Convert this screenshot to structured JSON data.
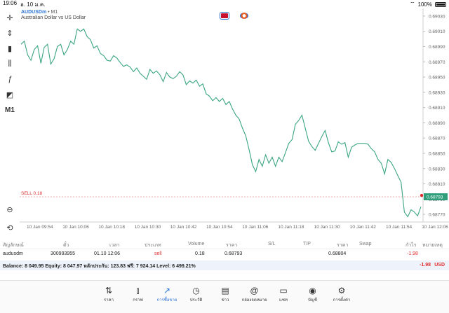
{
  "status_bar": {
    "time": "19:06",
    "date": "อ. 10 ม.ค.",
    "battery": "100%"
  },
  "symbol": {
    "name": "AUDUSDm",
    "separator": "•",
    "timeframe": "M1",
    "description": "Australian Dollar vs US Dollar"
  },
  "toolbar": {
    "timeframe": "M1"
  },
  "chart_data": {
    "type": "line",
    "price_ticks": [
      "0.69030",
      "0.69010",
      "0.68990",
      "0.68970",
      "0.68950",
      "0.68930",
      "0.68910",
      "0.68890",
      "0.68870",
      "0.68850",
      "0.68830",
      "0.68810",
      "0.68790",
      "0.68770"
    ],
    "time_ticks": [
      "10 Jan 09:54",
      "10 Jan 10:06",
      "10 Jan 10:18",
      "10 Jan 10:30",
      "10 Jan 10:42",
      "10 Jan 10:54",
      "10 Jan 11:06",
      "10 Jan 11:18",
      "10 Jan 11:30",
      "10 Jan 11:42",
      "10 Jan 11:54",
      "10 Jan 12:06"
    ],
    "ylim": [
      0.6876,
      0.6904
    ],
    "series": [
      {
        "color": "#3aa57f",
        "values": [
          0.68993,
          0.68997,
          0.68979,
          0.68972,
          0.68986,
          0.68991,
          0.68968,
          0.68989,
          0.68993,
          0.68967,
          0.68974,
          0.6899,
          0.68993,
          0.68979,
          0.68986,
          0.68997,
          0.68993,
          0.69013,
          0.6901,
          0.69013,
          0.69003,
          0.68999,
          0.68988,
          0.68991,
          0.68981,
          0.68978,
          0.68972,
          0.68971,
          0.68978,
          0.68975,
          0.68969,
          0.68964,
          0.68966,
          0.68963,
          0.68957,
          0.68962,
          0.68955,
          0.68951,
          0.68947,
          0.6896,
          0.68955,
          0.68958,
          0.68953,
          0.68944,
          0.68956,
          0.6895,
          0.68948,
          0.68951,
          0.68957,
          0.68953,
          0.6894,
          0.68945,
          0.68942,
          0.68946,
          0.68938,
          0.68941,
          0.68928,
          0.68925,
          0.68919,
          0.68923,
          0.68918,
          0.68922,
          0.68914,
          0.68918,
          0.68908,
          0.689,
          0.68895,
          0.68883,
          0.68873,
          0.68855,
          0.68835,
          0.68826,
          0.68842,
          0.68833,
          0.68848,
          0.68837,
          0.68845,
          0.68833,
          0.68845,
          0.68839,
          0.68851,
          0.68863,
          0.68868,
          0.68888,
          0.68893,
          0.689,
          0.68883,
          0.68866,
          0.68859,
          0.68854,
          0.68863,
          0.68872,
          0.6888,
          0.68864,
          0.68852,
          0.68853,
          0.68865,
          0.68862,
          0.68864,
          0.68845,
          0.68858,
          0.68861,
          0.68863,
          0.68863,
          0.68863,
          0.68862,
          0.68856,
          0.68852,
          0.68842,
          0.68837,
          0.68823,
          0.68842,
          0.68838,
          0.6883,
          0.68821,
          0.68812,
          0.68773,
          0.68767,
          0.68776,
          0.68773,
          0.68768,
          0.6878
        ]
      }
    ],
    "current_price": "0.68793",
    "sell_line": {
      "label": "SELL 0.18",
      "price": 0.68793
    }
  },
  "table": {
    "headers": [
      "สัญลักษณ์",
      "ตั๋ว",
      "เวลา",
      "ประเภท",
      "Volume",
      "ราคา",
      "S/L",
      "T/P",
      "ราคา",
      "Swap",
      "กำไร",
      "หมายเหตุ"
    ],
    "row": {
      "symbol": "audusdm",
      "ticket": "300993955",
      "time": "01.10 12:06",
      "type": "sell",
      "volume": "0.18",
      "price": "0.68793",
      "current": "0.68804",
      "profit": "-1.98"
    }
  },
  "balance": {
    "text": "Balance: 8 049.95 Equity: 8 047.97 หลักประกัน: 123.83 ฟรี: 7 924.14 Level: 6 499.21%",
    "profit": "-1.98",
    "currency": "USD"
  },
  "nav": [
    {
      "label": "ราคา",
      "icon": "updown-icon"
    },
    {
      "label": "กราฟ",
      "icon": "candles-icon"
    },
    {
      "label": "การซื้อขาย",
      "icon": "trade-icon"
    },
    {
      "label": "ประวัติ",
      "icon": "history-icon"
    },
    {
      "label": "ข่าว",
      "icon": "news-icon"
    },
    {
      "label": "กล่องจดหมาย",
      "icon": "mail-icon"
    },
    {
      "label": "แชท",
      "icon": "chat-icon"
    },
    {
      "label": "บัญชี",
      "icon": "account-icon"
    },
    {
      "label": "การตั้งค่า",
      "icon": "settings-icon"
    }
  ],
  "colors": {
    "line": "#3aa57f",
    "accent": "#2a73d6",
    "sell": "#e03030"
  }
}
